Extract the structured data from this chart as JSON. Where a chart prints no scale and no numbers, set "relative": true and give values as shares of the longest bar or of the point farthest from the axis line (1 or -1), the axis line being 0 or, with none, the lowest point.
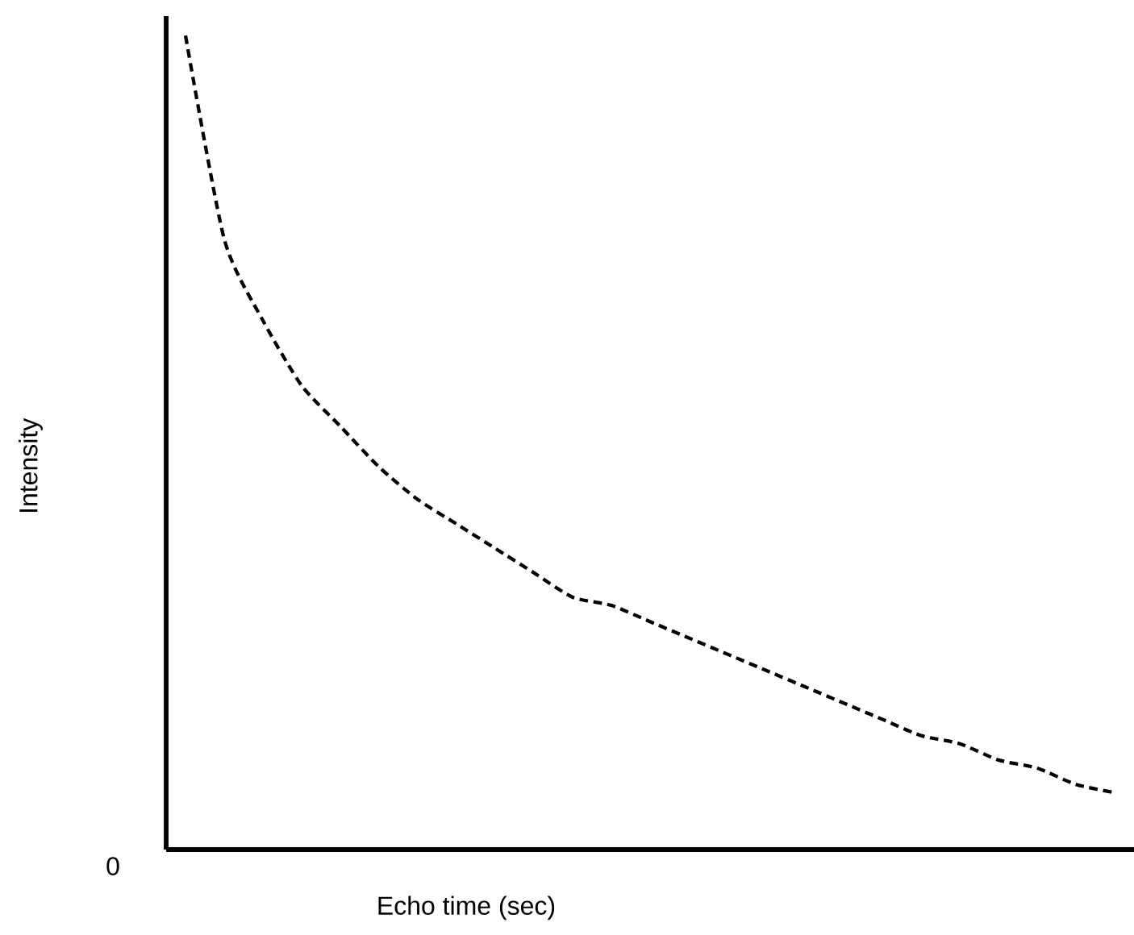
{
  "chart_data": {
    "type": "line",
    "relative": true,
    "xlabel": "Echo time (sec)",
    "ylabel": "Intensity",
    "annotations": [
      "0"
    ],
    "categories": [
      null,
      null,
      null,
      null,
      null,
      null,
      null,
      null,
      null,
      null,
      null,
      null,
      null,
      null,
      null,
      null,
      null,
      null,
      null,
      null,
      null,
      null,
      null,
      null,
      null
    ],
    "series": [
      {
        "color": "#000000",
        "line_style": "dashed",
        "values": [
          1.0,
          0.75,
          0.65,
          0.57,
          0.52,
          0.47,
          0.43,
          0.4,
          0.37,
          0.34,
          0.31,
          0.3,
          0.28,
          0.26,
          0.24,
          0.22,
          0.2,
          0.18,
          0.16,
          0.14,
          0.13,
          0.11,
          0.1,
          0.08,
          0.07
        ]
      }
    ]
  }
}
